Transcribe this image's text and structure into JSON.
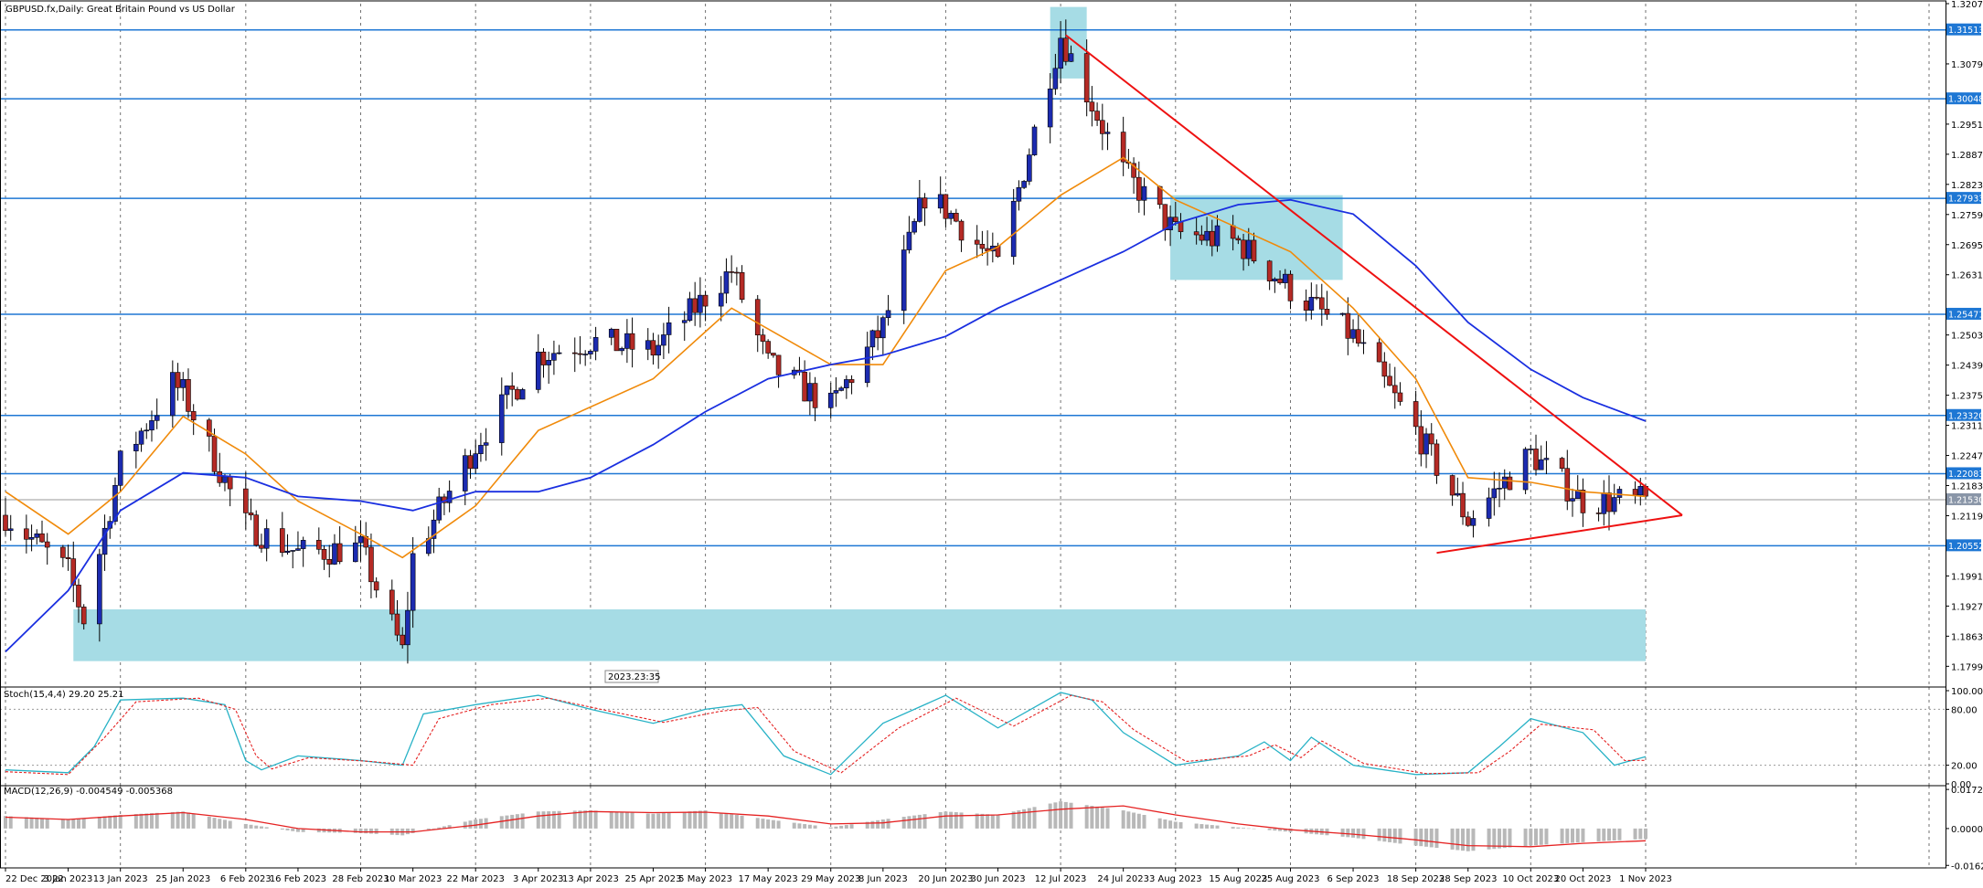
{
  "header": {
    "symbol_text": "GBPUSD.fx,Daily:  Great Britain Pound vs US Dollar",
    "stoch_text": "Stoch(15,4,4) 29.20 25.21",
    "macd_text": "MACD(12,26,9) -0.004549 -0.005368",
    "timer_text": "2023.23:35"
  },
  "colors": {
    "bull_body": "#1c2bb0",
    "bear_body": "#b52a25",
    "wick": "#000000",
    "ma_fast": "#f08a0a",
    "ma_slow": "#1a2fe0",
    "level": "#1e77d4",
    "trend": "#ee1111",
    "zone": "#a6dce5",
    "stoch_main": "#27b2c6",
    "stoch_signal": "#e52222",
    "macd_hist": "#b8b8b8",
    "macd_signal": "#e52222",
    "badge": "#1e77d4"
  },
  "chart_data": [
    {
      "type": "candlestick",
      "title": "GBPUSD.fx,Daily:  Great Britain Pound vs US Dollar",
      "ylim": [
        1.1755,
        1.3207
      ],
      "y_ticks": [
        1.3207,
        1.3079,
        1.2951,
        1.2887,
        1.2823,
        1.2759,
        1.2695,
        1.2631,
        1.2503,
        1.2439,
        1.2375,
        1.2311,
        1.2247,
        1.2183,
        1.2119,
        1.1991,
        1.1927,
        1.1863,
        1.1799
      ],
      "x_tick_labels": [
        "22 Dec 2022",
        "3 Jan 2023",
        "13 Jan 2023",
        "25 Jan 2023",
        "6 Feb 2023",
        "16 Feb 2023",
        "28 Feb 2023",
        "10 Mar 2023",
        "22 Mar 2023",
        "3 Apr 2023",
        "13 Apr 2023",
        "25 Apr 2023",
        "5 May 2023",
        "17 May 2023",
        "29 May 2023",
        "8 Jun 2023",
        "20 Jun 2023",
        "30 Jun 2023",
        "12 Jul 2023",
        "24 Jul 2023",
        "3 Aug 2023",
        "15 Aug 2023",
        "25 Aug 2023",
        "6 Sep 2023",
        "18 Sep 2023",
        "28 Sep 2023",
        "10 Oct 2023",
        "20 Oct 2023",
        "1 Nov 2023"
      ],
      "levels": [
        {
          "value": 1.31513,
          "label": "1.31513"
        },
        {
          "value": 1.30048,
          "label": "1.30048"
        },
        {
          "value": 1.27933,
          "label": "1.27933"
        },
        {
          "value": 1.25471,
          "label": "1.25471"
        },
        {
          "value": 1.2332,
          "label": "1.23320"
        },
        {
          "value": 1.22083,
          "label": "1.22083"
        },
        {
          "value": 1.20552,
          "label": "1.20552"
        }
      ],
      "current_price": {
        "value": 1.2153,
        "label": "1.21530"
      },
      "anchors": [
        {
          "x": "22 Dec 2022",
          "y": 1.212
        },
        {
          "x": "3 Jan 2023",
          "y": 1.2
        },
        {
          "x": "6 Jan 2023",
          "y": 1.19
        },
        {
          "x": "13 Jan 2023",
          "y": 1.223
        },
        {
          "x": "23 Jan 2023",
          "y": 1.24
        },
        {
          "x": "25 Jan 2023",
          "y": 1.238
        },
        {
          "x": "6 Feb 2023",
          "y": 1.21
        },
        {
          "x": "16 Feb 2023",
          "y": 1.204
        },
        {
          "x": "28 Feb 2023",
          "y": 1.205
        },
        {
          "x": "8 Mar 2023",
          "y": 1.183
        },
        {
          "x": "10 Mar 2023",
          "y": 1.203
        },
        {
          "x": "22 Mar 2023",
          "y": 1.227
        },
        {
          "x": "3 Apr 2023",
          "y": 1.246
        },
        {
          "x": "13 Apr 2023",
          "y": 1.249
        },
        {
          "x": "25 Apr 2023",
          "y": 1.247
        },
        {
          "x": "10 May 2023",
          "y": 1.264
        },
        {
          "x": "17 May 2023",
          "y": 1.244
        },
        {
          "x": "29 May 2023",
          "y": 1.235
        },
        {
          "x": "8 Jun 2023",
          "y": 1.252
        },
        {
          "x": "16 Jun 2023",
          "y": 1.28
        },
        {
          "x": "20 Jun 2023",
          "y": 1.277
        },
        {
          "x": "30 Jun 2023",
          "y": 1.265
        },
        {
          "x": "12 Jul 2023",
          "y": 1.314
        },
        {
          "x": "24 Jul 2023",
          "y": 1.285
        },
        {
          "x": "3 Aug 2023",
          "y": 1.272
        },
        {
          "x": "15 Aug 2023",
          "y": 1.27
        },
        {
          "x": "25 Aug 2023",
          "y": 1.26
        },
        {
          "x": "6 Sep 2023",
          "y": 1.25
        },
        {
          "x": "18 Sep 2023",
          "y": 1.23
        },
        {
          "x": "28 Sep 2023",
          "y": 1.211
        },
        {
          "x": "10 Oct 2023",
          "y": 1.225
        },
        {
          "x": "20 Oct 2023",
          "y": 1.215
        },
        {
          "x": "1 Nov 2023",
          "y": 1.215
        }
      ],
      "ma_fast_points": [
        {
          "x": "22 Dec 2022",
          "y": 1.217
        },
        {
          "x": "3 Jan 2023",
          "y": 1.208
        },
        {
          "x": "13 Jan 2023",
          "y": 1.217
        },
        {
          "x": "25 Jan 2023",
          "y": 1.233
        },
        {
          "x": "6 Feb 2023",
          "y": 1.225
        },
        {
          "x": "16 Feb 2023",
          "y": 1.215
        },
        {
          "x": "28 Feb 2023",
          "y": 1.208
        },
        {
          "x": "8 Mar 2023",
          "y": 1.203
        },
        {
          "x": "22 Mar 2023",
          "y": 1.214
        },
        {
          "x": "3 Apr 2023",
          "y": 1.23
        },
        {
          "x": "25 Apr 2023",
          "y": 1.241
        },
        {
          "x": "10 May 2023",
          "y": 1.256
        },
        {
          "x": "29 May 2023",
          "y": 1.244
        },
        {
          "x": "8 Jun 2023",
          "y": 1.244
        },
        {
          "x": "20 Jun 2023",
          "y": 1.264
        },
        {
          "x": "30 Jun 2023",
          "y": 1.269
        },
        {
          "x": "12 Jul 2023",
          "y": 1.28
        },
        {
          "x": "24 Jul 2023",
          "y": 1.288
        },
        {
          "x": "3 Aug 2023",
          "y": 1.279
        },
        {
          "x": "15 Aug 2023",
          "y": 1.273
        },
        {
          "x": "25 Aug 2023",
          "y": 1.268
        },
        {
          "x": "6 Sep 2023",
          "y": 1.256
        },
        {
          "x": "18 Sep 2023",
          "y": 1.241
        },
        {
          "x": "28 Sep 2023",
          "y": 1.22
        },
        {
          "x": "10 Oct 2023",
          "y": 1.219
        },
        {
          "x": "20 Oct 2023",
          "y": 1.217
        },
        {
          "x": "1 Nov 2023",
          "y": 1.216
        }
      ],
      "ma_slow_points": [
        {
          "x": "22 Dec 2022",
          "y": 1.183
        },
        {
          "x": "3 Jan 2023",
          "y": 1.196
        },
        {
          "x": "13 Jan 2023",
          "y": 1.213
        },
        {
          "x": "25 Jan 2023",
          "y": 1.221
        },
        {
          "x": "6 Feb 2023",
          "y": 1.22
        },
        {
          "x": "16 Feb 2023",
          "y": 1.216
        },
        {
          "x": "28 Feb 2023",
          "y": 1.215
        },
        {
          "x": "10 Mar 2023",
          "y": 1.213
        },
        {
          "x": "22 Mar 2023",
          "y": 1.217
        },
        {
          "x": "3 Apr 2023",
          "y": 1.217
        },
        {
          "x": "13 Apr 2023",
          "y": 1.22
        },
        {
          "x": "25 Apr 2023",
          "y": 1.227
        },
        {
          "x": "5 May 2023",
          "y": 1.234
        },
        {
          "x": "17 May 2023",
          "y": 1.241
        },
        {
          "x": "29 May 2023",
          "y": 1.244
        },
        {
          "x": "8 Jun 2023",
          "y": 1.246
        },
        {
          "x": "20 Jun 2023",
          "y": 1.25
        },
        {
          "x": "30 Jun 2023",
          "y": 1.256
        },
        {
          "x": "12 Jul 2023",
          "y": 1.262
        },
        {
          "x": "24 Jul 2023",
          "y": 1.268
        },
        {
          "x": "3 Aug 2023",
          "y": 1.274
        },
        {
          "x": "15 Aug 2023",
          "y": 1.278
        },
        {
          "x": "25 Aug 2023",
          "y": 1.279
        },
        {
          "x": "6 Sep 2023",
          "y": 1.276
        },
        {
          "x": "18 Sep 2023",
          "y": 1.265
        },
        {
          "x": "28 Sep 2023",
          "y": 1.253
        },
        {
          "x": "10 Oct 2023",
          "y": 1.243
        },
        {
          "x": "20 Oct 2023",
          "y": 1.237
        },
        {
          "x": "1 Nov 2023",
          "y": 1.232
        }
      ],
      "trendlines": [
        {
          "x1": "13 Jul 2023",
          "y1": 1.314,
          "x2": "8 Nov 2023",
          "y2": 1.212
        },
        {
          "x1": "22 Sep 2023",
          "y1": 1.204,
          "x2": "8 Nov 2023",
          "y2": 1.212
        }
      ],
      "zones": [
        {
          "x1": "10 Jul 2023",
          "x2": "17 Jul 2023",
          "y1": 1.3048,
          "y2": 1.32
        },
        {
          "x1": "2 Aug 2023",
          "x2": "4 Sep 2023",
          "y1": 1.262,
          "y2": 1.28
        },
        {
          "x1": "4 Jan 2023",
          "x2": "1 Nov 2023",
          "y1": 1.181,
          "y2": 1.192
        }
      ]
    },
    {
      "type": "line",
      "title": "Stoch(15,4,4) 29.20 25.21",
      "ylim": [
        0,
        100
      ],
      "y_ticks": [
        100,
        80,
        20,
        0
      ],
      "y_tick_labels": [
        "100.00",
        "80.00",
        "20.00",
        "0.00"
      ],
      "levels": [
        80,
        20
      ],
      "main_points": [
        {
          "x": "22 Dec 2022",
          "y": 15
        },
        {
          "x": "3 Jan 2023",
          "y": 12
        },
        {
          "x": "8 Jan 2023",
          "y": 40
        },
        {
          "x": "13 Jan 2023",
          "y": 90
        },
        {
          "x": "25 Jan 2023",
          "y": 92
        },
        {
          "x": "2 Feb 2023",
          "y": 85
        },
        {
          "x": "6 Feb 2023",
          "y": 25
        },
        {
          "x": "9 Feb 2023",
          "y": 15
        },
        {
          "x": "16 Feb 2023",
          "y": 30
        },
        {
          "x": "28 Feb 2023",
          "y": 25
        },
        {
          "x": "8 Mar 2023",
          "y": 20
        },
        {
          "x": "12 Mar 2023",
          "y": 75
        },
        {
          "x": "22 Mar 2023",
          "y": 85
        },
        {
          "x": "3 Apr 2023",
          "y": 95
        },
        {
          "x": "13 Apr 2023",
          "y": 80
        },
        {
          "x": "25 Apr 2023",
          "y": 65
        },
        {
          "x": "5 May 2023",
          "y": 80
        },
        {
          "x": "12 May 2023",
          "y": 85
        },
        {
          "x": "20 May 2023",
          "y": 30
        },
        {
          "x": "29 May 2023",
          "y": 10
        },
        {
          "x": "8 Jun 2023",
          "y": 65
        },
        {
          "x": "20 Jun 2023",
          "y": 95
        },
        {
          "x": "30 Jun 2023",
          "y": 60
        },
        {
          "x": "12 Jul 2023",
          "y": 98
        },
        {
          "x": "18 Jul 2023",
          "y": 90
        },
        {
          "x": "24 Jul 2023",
          "y": 55
        },
        {
          "x": "3 Aug 2023",
          "y": 20
        },
        {
          "x": "15 Aug 2023",
          "y": 30
        },
        {
          "x": "20 Aug 2023",
          "y": 45
        },
        {
          "x": "25 Aug 2023",
          "y": 25
        },
        {
          "x": "29 Aug 2023",
          "y": 50
        },
        {
          "x": "6 Sep 2023",
          "y": 20
        },
        {
          "x": "18 Sep 2023",
          "y": 10
        },
        {
          "x": "28 Sep 2023",
          "y": 12
        },
        {
          "x": "4 Oct 2023",
          "y": 40
        },
        {
          "x": "10 Oct 2023",
          "y": 70
        },
        {
          "x": "20 Oct 2023",
          "y": 55
        },
        {
          "x": "26 Oct 2023",
          "y": 20
        },
        {
          "x": "1 Nov 2023",
          "y": 29.2
        }
      ],
      "signal_points": [
        {
          "x": "22 Dec 2022",
          "y": 13
        },
        {
          "x": "3 Jan 2023",
          "y": 10
        },
        {
          "x": "10 Jan 2023",
          "y": 50
        },
        {
          "x": "16 Jan 2023",
          "y": 88
        },
        {
          "x": "28 Jan 2023",
          "y": 92
        },
        {
          "x": "4 Feb 2023",
          "y": 80
        },
        {
          "x": "8 Feb 2023",
          "y": 30
        },
        {
          "x": "11 Feb 2023",
          "y": 16
        },
        {
          "x": "18 Feb 2023",
          "y": 28
        },
        {
          "x": "2 Mar 2023",
          "y": 24
        },
        {
          "x": "10 Mar 2023",
          "y": 20
        },
        {
          "x": "15 Mar 2023",
          "y": 70
        },
        {
          "x": "25 Mar 2023",
          "y": 85
        },
        {
          "x": "5 Apr 2023",
          "y": 92
        },
        {
          "x": "15 Apr 2023",
          "y": 80
        },
        {
          "x": "27 Apr 2023",
          "y": 66
        },
        {
          "x": "8 May 2023",
          "y": 78
        },
        {
          "x": "15 May 2023",
          "y": 82
        },
        {
          "x": "22 May 2023",
          "y": 35
        },
        {
          "x": "31 May 2023",
          "y": 12
        },
        {
          "x": "11 Jun 2023",
          "y": 60
        },
        {
          "x": "22 Jun 2023",
          "y": 92
        },
        {
          "x": "3 Jul 2023",
          "y": 62
        },
        {
          "x": "14 Jul 2023",
          "y": 95
        },
        {
          "x": "20 Jul 2023",
          "y": 88
        },
        {
          "x": "26 Jul 2023",
          "y": 58
        },
        {
          "x": "5 Aug 2023",
          "y": 24
        },
        {
          "x": "17 Aug 2023",
          "y": 30
        },
        {
          "x": "22 Aug 2023",
          "y": 42
        },
        {
          "x": "27 Aug 2023",
          "y": 28
        },
        {
          "x": "31 Aug 2023",
          "y": 46
        },
        {
          "x": "8 Sep 2023",
          "y": 22
        },
        {
          "x": "20 Sep 2023",
          "y": 11
        },
        {
          "x": "30 Sep 2023",
          "y": 12
        },
        {
          "x": "6 Oct 2023",
          "y": 35
        },
        {
          "x": "12 Oct 2023",
          "y": 64
        },
        {
          "x": "22 Oct 2023",
          "y": 58
        },
        {
          "x": "28 Oct 2023",
          "y": 25
        },
        {
          "x": "1 Nov 2023",
          "y": 25.21
        }
      ]
    },
    {
      "type": "bar",
      "title": "MACD(12,26,9) -0.004549 -0.005368",
      "ylim": [
        -0.01653,
        0.01807
      ],
      "y_ticks": [
        0.017218,
        0.0,
        -0.01623
      ],
      "y_tick_labels": [
        "0.017218",
        "0.000000",
        "-0.016230"
      ],
      "hist_points": [
        {
          "x": "22 Dec 2022",
          "y": 0.0055
        },
        {
          "x": "3 Jan 2023",
          "y": 0.004
        },
        {
          "x": "13 Jan 2023",
          "y": 0.006
        },
        {
          "x": "25 Jan 2023",
          "y": 0.0075
        },
        {
          "x": "6 Feb 2023",
          "y": 0.002
        },
        {
          "x": "16 Feb 2023",
          "y": -0.0015
        },
        {
          "x": "28 Feb 2023",
          "y": -0.002
        },
        {
          "x": "8 Mar 2023",
          "y": -0.003
        },
        {
          "x": "22 Mar 2023",
          "y": 0.004
        },
        {
          "x": "3 Apr 2023",
          "y": 0.0075
        },
        {
          "x": "13 Apr 2023",
          "y": 0.008
        },
        {
          "x": "25 Apr 2023",
          "y": 0.0065
        },
        {
          "x": "5 May 2023",
          "y": 0.008
        },
        {
          "x": "17 May 2023",
          "y": 0.004
        },
        {
          "x": "29 May 2023",
          "y": 0.0005
        },
        {
          "x": "8 Jun 2023",
          "y": 0.004
        },
        {
          "x": "20 Jun 2023",
          "y": 0.0075
        },
        {
          "x": "30 Jun 2023",
          "y": 0.006
        },
        {
          "x": "12 Jul 2023",
          "y": 0.012
        },
        {
          "x": "24 Jul 2023",
          "y": 0.008
        },
        {
          "x": "3 Aug 2023",
          "y": 0.003
        },
        {
          "x": "15 Aug 2023",
          "y": 0.0005
        },
        {
          "x": "25 Aug 2023",
          "y": -0.0015
        },
        {
          "x": "6 Sep 2023",
          "y": -0.004
        },
        {
          "x": "18 Sep 2023",
          "y": -0.0075
        },
        {
          "x": "28 Sep 2023",
          "y": -0.01
        },
        {
          "x": "10 Oct 2023",
          "y": -0.0075
        },
        {
          "x": "20 Oct 2023",
          "y": -0.006
        },
        {
          "x": "1 Nov 2023",
          "y": -0.004549
        }
      ],
      "signal_points": [
        {
          "x": "22 Dec 2022",
          "y": 0.005
        },
        {
          "x": "3 Jan 2023",
          "y": 0.004
        },
        {
          "x": "13 Jan 2023",
          "y": 0.0055
        },
        {
          "x": "25 Jan 2023",
          "y": 0.007
        },
        {
          "x": "6 Feb 2023",
          "y": 0.004
        },
        {
          "x": "16 Feb 2023",
          "y": 0.0
        },
        {
          "x": "28 Feb 2023",
          "y": -0.0015
        },
        {
          "x": "10 Mar 2023",
          "y": -0.0015
        },
        {
          "x": "22 Mar 2023",
          "y": 0.0015
        },
        {
          "x": "3 Apr 2023",
          "y": 0.0055
        },
        {
          "x": "13 Apr 2023",
          "y": 0.0075
        },
        {
          "x": "25 Apr 2023",
          "y": 0.007
        },
        {
          "x": "5 May 2023",
          "y": 0.0072
        },
        {
          "x": "17 May 2023",
          "y": 0.0055
        },
        {
          "x": "29 May 2023",
          "y": 0.002
        },
        {
          "x": "8 Jun 2023",
          "y": 0.0025
        },
        {
          "x": "20 Jun 2023",
          "y": 0.0055
        },
        {
          "x": "30 Jun 2023",
          "y": 0.006
        },
        {
          "x": "12 Jul 2023",
          "y": 0.0085
        },
        {
          "x": "24 Jul 2023",
          "y": 0.01
        },
        {
          "x": "3 Aug 2023",
          "y": 0.006
        },
        {
          "x": "15 Aug 2023",
          "y": 0.002
        },
        {
          "x": "25 Aug 2023",
          "y": -0.0005
        },
        {
          "x": "6 Sep 2023",
          "y": -0.0025
        },
        {
          "x": "18 Sep 2023",
          "y": -0.005
        },
        {
          "x": "28 Sep 2023",
          "y": -0.0075
        },
        {
          "x": "10 Oct 2023",
          "y": -0.008
        },
        {
          "x": "20 Oct 2023",
          "y": -0.0065
        },
        {
          "x": "1 Nov 2023",
          "y": -0.005368
        }
      ]
    }
  ]
}
